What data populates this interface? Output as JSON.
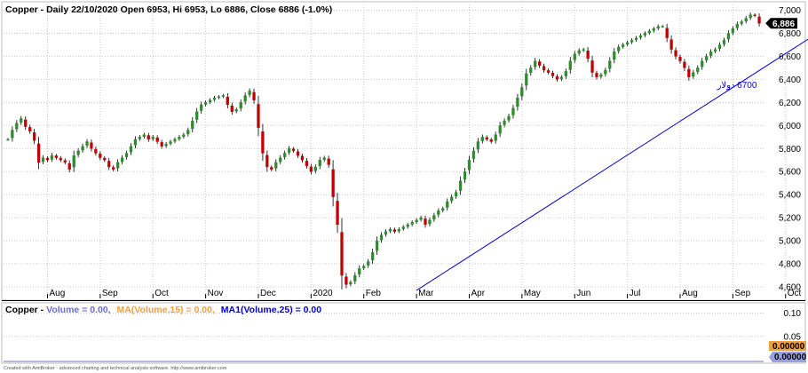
{
  "header": {
    "title": "Copper - Daily 22/10/2020 Open 6953, Hi 6953, Lo 6886, Close 6886 (-1.0%)"
  },
  "volume_header": {
    "prefix": "Copper - ",
    "volume": "Volume = 0.00,",
    "ma15": "MA(Volume,15) = 0.00,",
    "ma25": "MA1(Volume,25) = 0.00"
  },
  "footer": "Created with AmiBroker - advanced charting and technical analysis software. http://www.amibroker.com",
  "colors": {
    "up": "#2e8b2e",
    "down": "#c00000",
    "trendline": "#0000cc",
    "grid": "#c8c8c8",
    "volume": "#6b6bd6",
    "ma15": "#f0a040",
    "ma25": "#0000cc",
    "price_badge": "#000000",
    "vol_badge_orange": "#f0a040",
    "vol_badge_blue": "#9aa0e0"
  },
  "chart_data": [
    {
      "type": "candlestick",
      "title": "Copper - Daily 22/10/2020 Open 6953, Hi 6953, Lo 6886, Close 6886 (-1.0%)",
      "ylim": [
        4500,
        7050
      ],
      "yticks": [
        4600,
        4800,
        5000,
        5200,
        5400,
        5600,
        5800,
        6000,
        6200,
        6400,
        6600,
        6800,
        7000
      ],
      "ytick_labels": [
        "4,600",
        "4,800",
        "5,000",
        "5,200",
        "5,400",
        "5,600",
        "5,800",
        "6,000",
        "6,200",
        "6,400",
        "6,600",
        "6,800",
        "7,000"
      ],
      "months": [
        {
          "label": "Aug",
          "index": 9
        },
        {
          "label": "Sep",
          "index": 21
        },
        {
          "label": "Oct",
          "index": 33
        },
        {
          "label": "Nov",
          "index": 45
        },
        {
          "label": "Dec",
          "index": 57
        },
        {
          "label": "2020",
          "index": 69
        },
        {
          "label": "Feb",
          "index": 81
        },
        {
          "label": "Mar",
          "index": 93
        },
        {
          "label": "Apr",
          "index": 105
        },
        {
          "label": "May",
          "index": 117
        },
        {
          "label": "Jun",
          "index": 129
        },
        {
          "label": "Jul",
          "index": 141
        },
        {
          "label": "Aug",
          "index": 153
        },
        {
          "label": "Sep",
          "index": 165
        },
        {
          "label": "Oct",
          "index": 177
        }
      ],
      "last_close_label": "6,886",
      "closes": [
        5880,
        5960,
        6020,
        6060,
        5990,
        5950,
        5870,
        5680,
        5720,
        5700,
        5740,
        5720,
        5700,
        5680,
        5620,
        5740,
        5780,
        5820,
        5860,
        5800,
        5760,
        5720,
        5700,
        5640,
        5620,
        5680,
        5720,
        5760,
        5820,
        5880,
        5900,
        5920,
        5880,
        5900,
        5860,
        5820,
        5840,
        5860,
        5880,
        5900,
        5920,
        5960,
        6040,
        6120,
        6180,
        6200,
        6220,
        6240,
        6250,
        6260,
        6180,
        6120,
        6140,
        6200,
        6260,
        6300,
        6220,
        5980,
        5760,
        5640,
        5620,
        5680,
        5720,
        5760,
        5800,
        5780,
        5740,
        5700,
        5650,
        5600,
        5640,
        5700,
        5720,
        5660,
        5380,
        5140,
        4700,
        4620,
        4640,
        4700,
        4760,
        4780,
        4820,
        4900,
        5000,
        5050,
        5080,
        5100,
        5080,
        5100,
        5120,
        5140,
        5160,
        5180,
        5200,
        5140,
        5180,
        5220,
        5260,
        5280,
        5340,
        5380,
        5420,
        5520,
        5600,
        5700,
        5780,
        5860,
        5900,
        5880,
        5860,
        5920,
        6000,
        6040,
        6080,
        6150,
        6240,
        6330,
        6450,
        6500,
        6560,
        6520,
        6480,
        6460,
        6430,
        6400,
        6420,
        6470,
        6560,
        6620,
        6650,
        6660,
        6580,
        6460,
        6420,
        6440,
        6480,
        6560,
        6640,
        6680,
        6700,
        6720,
        6740,
        6760,
        6780,
        6800,
        6820,
        6840,
        6860,
        6860,
        6760,
        6660,
        6600,
        6560,
        6500,
        6420,
        6460,
        6500,
        6560,
        6600,
        6640,
        6660,
        6700,
        6740,
        6800,
        6840,
        6880,
        6900,
        6930,
        6960,
        6953,
        6886
      ]
    },
    {
      "type": "line",
      "title": "Copper - Volume = 0.00, MA(Volume,15) = 0.00, MA1(Volume,25) = 0.00",
      "yticks": [
        0.1,
        0.05
      ],
      "ytick_labels": [
        "0.10",
        "0.05"
      ],
      "badges": [
        "0.00000",
        "0.00000"
      ],
      "series": [
        {
          "name": "Volume",
          "values": [
            0
          ]
        },
        {
          "name": "MA(Volume,15)",
          "values": [
            0
          ]
        },
        {
          "name": "MA1(Volume,25)",
          "values": [
            0
          ]
        }
      ]
    }
  ],
  "annotation": {
    "text": "6700 دولار",
    "trendline": {
      "start": {
        "index": 93,
        "value": 4570
      },
      "end": {
        "index": 183,
        "value": 6770
      }
    }
  }
}
